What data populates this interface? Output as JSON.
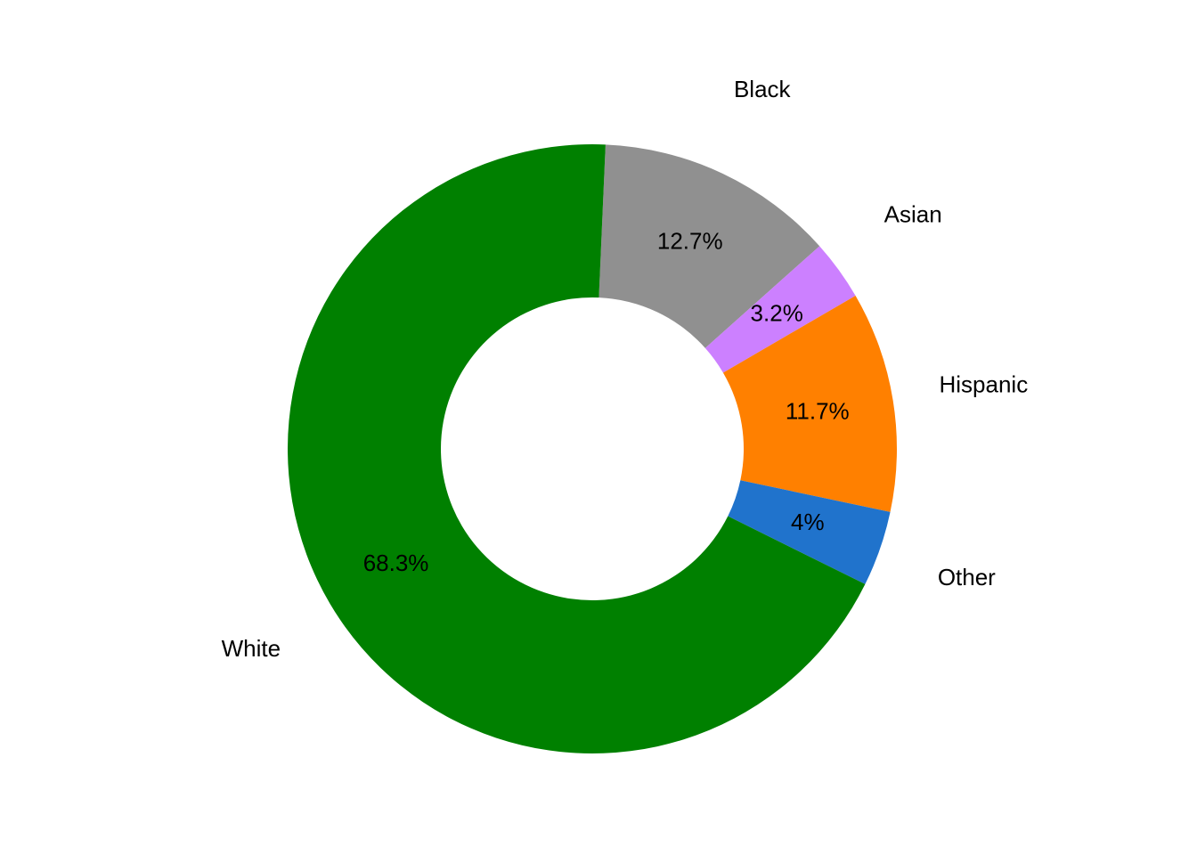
{
  "chart_data": {
    "type": "donut",
    "categories": [
      "Black",
      "Asian",
      "Hispanic",
      "Other",
      "White"
    ],
    "values": [
      12.7,
      3.2,
      11.7,
      4,
      68.3
    ],
    "value_labels": [
      "12.7%",
      "3.2%",
      "11.7%",
      "4%",
      "68.3%"
    ],
    "colors": [
      "#909090",
      "#cc80ff",
      "#ff8000",
      "#2073cc",
      "#008000"
    ]
  }
}
